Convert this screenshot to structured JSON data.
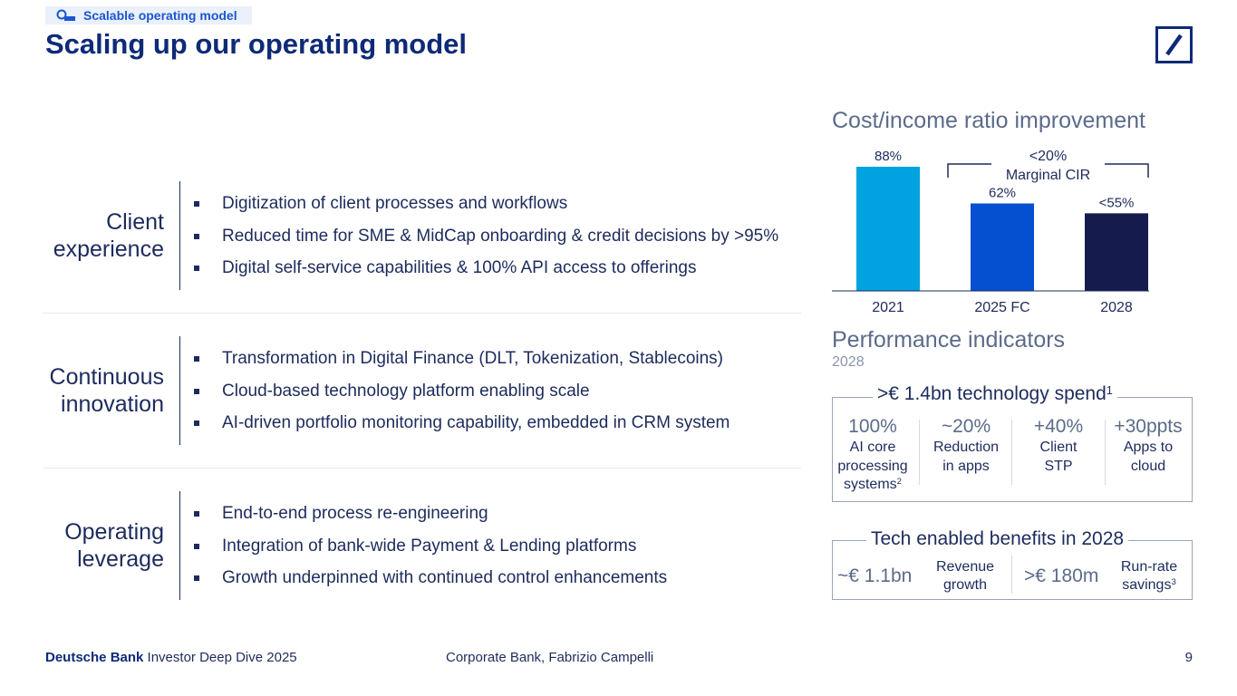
{
  "header": {
    "section_tag": "Scalable operating model",
    "title": "Scaling up our operating model"
  },
  "rows": [
    {
      "label_lines": [
        "Client",
        "experience"
      ],
      "bullets": [
        "Digitization of client processes and workflows",
        "Reduced time for SME & MidCap onboarding & credit decisions by >95%",
        "Digital self-service capabilities & 100% API access to offerings"
      ]
    },
    {
      "label_lines": [
        "Continuous",
        "innovation"
      ],
      "bullets": [
        "Transformation in Digital Finance (DLT, Tokenization, Stablecoins)",
        "Cloud-based technology platform enabling scale",
        "AI-driven portfolio monitoring capability, embedded in CRM system"
      ]
    },
    {
      "label_lines": [
        "Operating",
        "leverage"
      ],
      "bullets": [
        "End-to-end process re-engineering",
        "Integration of bank-wide Payment & Lending platforms",
        "Growth underpinned with continued control enhancements"
      ]
    }
  ],
  "chart_data": {
    "type": "bar",
    "title": "Cost/income ratio improvement",
    "categories": [
      "2021",
      "2025 FC",
      "2028"
    ],
    "values": [
      88,
      62,
      55
    ],
    "data_labels": [
      "88%",
      "62%",
      "<55%"
    ],
    "bar_colors": [
      "#00a3e0",
      "#0550d1",
      "#161b4d"
    ],
    "ylim": [
      0,
      100
    ],
    "xlabel": "",
    "ylabel": "",
    "grid": false,
    "annotation": {
      "lines": [
        "<20%",
        "Marginal CIR"
      ],
      "spans": [
        "2025 FC",
        "2028"
      ]
    }
  },
  "performance": {
    "heading": "Performance indicators",
    "year": "2028",
    "spend_title": ">€ 1.4bn technology spend",
    "spend_footnote": "1",
    "kpis": [
      {
        "value": "100%",
        "label_lines": [
          "AI core",
          "processing",
          "systems"
        ],
        "footnote": "2"
      },
      {
        "value": "~20%",
        "label_lines": [
          "Reduction",
          "in apps"
        ],
        "footnote": ""
      },
      {
        "value": "+40%",
        "label_lines": [
          "Client",
          "STP"
        ],
        "footnote": ""
      },
      {
        "value": "+30ppts",
        "label_lines": [
          "Apps to",
          "cloud"
        ],
        "footnote": ""
      }
    ],
    "benefits_title": "Tech enabled benefits in 2028",
    "benefits": [
      {
        "value": "~€ 1.1bn",
        "label_lines": [
          "Revenue",
          "growth"
        ],
        "footnote": ""
      },
      {
        "value": ">€ 180m",
        "label_lines": [
          "Run-rate",
          "savings"
        ],
        "footnote": "3"
      }
    ]
  },
  "footer": {
    "brand": "Deutsche Bank",
    "event": "Investor Deep Dive 2025",
    "presenter": "Corporate Bank, Fabrizio Campelli",
    "page_number": "9"
  },
  "colors": {
    "navy": "#0e2a78",
    "accent_blue": "#1c56cf",
    "text": "#1d2b5c",
    "muted": "#5b6b8a"
  },
  "icons": {
    "section_tag": "magnifier-icon",
    "logo": "deutsche-bank-slash-logo"
  }
}
